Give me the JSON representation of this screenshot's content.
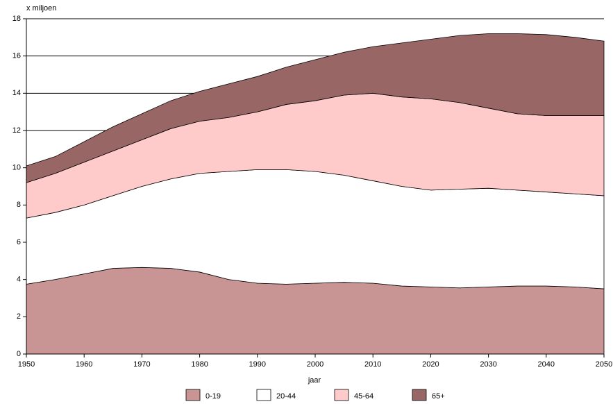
{
  "chart_data": {
    "type": "stacked_area",
    "y_label": "x miljoen",
    "x_label": "jaar",
    "x": [
      1950,
      1955,
      1960,
      1965,
      1970,
      1975,
      1980,
      1985,
      1990,
      1995,
      2000,
      2005,
      2010,
      2015,
      2020,
      2025,
      2030,
      2035,
      2040,
      2045,
      2050
    ],
    "series": [
      {
        "name": "0-19",
        "color": "#c99494",
        "values": [
          3.75,
          4.0,
          4.3,
          4.6,
          4.65,
          4.6,
          4.4,
          4.0,
          3.8,
          3.75,
          3.8,
          3.85,
          3.8,
          3.65,
          3.6,
          3.55,
          3.6,
          3.65,
          3.65,
          3.6,
          3.5
        ]
      },
      {
        "name": "20-44",
        "color": "#ffffff",
        "values": [
          3.55,
          3.6,
          3.7,
          3.9,
          4.35,
          4.8,
          5.3,
          5.8,
          6.1,
          6.15,
          6.0,
          5.75,
          5.5,
          5.35,
          5.2,
          5.3,
          5.3,
          5.15,
          5.05,
          5.0,
          5.0
        ]
      },
      {
        "name": "45-64",
        "color": "#ffcaca",
        "values": [
          1.9,
          2.1,
          2.3,
          2.4,
          2.5,
          2.7,
          2.8,
          2.9,
          3.1,
          3.5,
          3.8,
          4.3,
          4.7,
          4.8,
          4.9,
          4.65,
          4.3,
          4.1,
          4.1,
          4.2,
          4.3
        ]
      },
      {
        "name": "65+",
        "color": "#996666",
        "values": [
          0.9,
          0.9,
          1.1,
          1.3,
          1.4,
          1.5,
          1.6,
          1.8,
          1.9,
          2.0,
          2.2,
          2.3,
          2.5,
          2.9,
          3.2,
          3.6,
          4.0,
          4.3,
          4.35,
          4.2,
          4.0
        ]
      }
    ],
    "xlim": [
      1950,
      2050
    ],
    "xticks": [
      1950,
      1960,
      1970,
      1980,
      1990,
      2000,
      2010,
      2020,
      2030,
      2040,
      2050
    ],
    "ylim": [
      0,
      18
    ],
    "yticks": [
      0,
      2,
      4,
      6,
      8,
      10,
      12,
      14,
      16,
      18
    ],
    "grid": true
  }
}
